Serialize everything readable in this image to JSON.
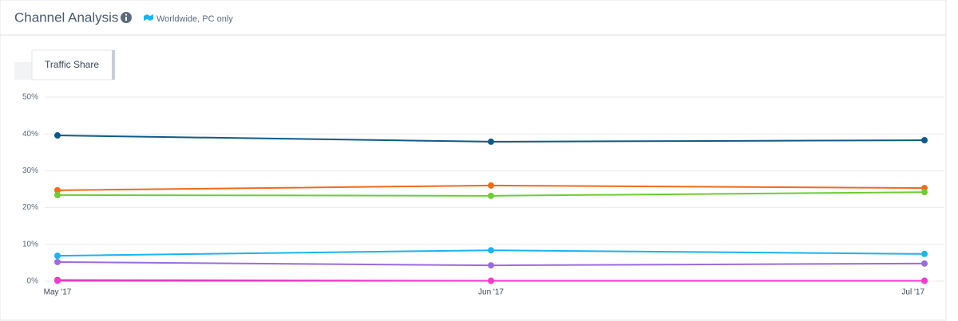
{
  "header": {
    "title": "Channel Analysis",
    "scope": "Worldwide, PC only"
  },
  "tabs": [
    "Traffic Share"
  ],
  "chart_data": {
    "type": "line",
    "categories": [
      "May '17",
      "Jun '17",
      "Jul '17"
    ],
    "series": [
      {
        "color": "#0e5a8a",
        "values": [
          39.6,
          37.9,
          38.3
        ]
      },
      {
        "color": "#f26a1b",
        "values": [
          24.7,
          26.0,
          25.3
        ]
      },
      {
        "color": "#6fcc31",
        "values": [
          23.4,
          23.2,
          24.2
        ]
      },
      {
        "color": "#1ab4ef",
        "values": [
          6.9,
          8.4,
          7.4
        ]
      },
      {
        "color": "#9b6ce0",
        "values": [
          5.2,
          4.3,
          4.8
        ]
      },
      {
        "color": "#e0245e",
        "values": [
          0.3,
          0.1,
          0.1
        ]
      },
      {
        "color": "#f23bd0",
        "values": [
          0.1,
          0.1,
          0.1
        ]
      }
    ],
    "ylim": [
      0,
      50
    ],
    "yticks": [
      {
        "value": 0,
        "label": "0%"
      },
      {
        "value": 10,
        "label": "10%"
      },
      {
        "value": 20,
        "label": "20%"
      },
      {
        "value": 30,
        "label": "30%"
      },
      {
        "value": 40,
        "label": "40%"
      },
      {
        "value": 50,
        "label": "50%"
      }
    ],
    "grid": true
  }
}
